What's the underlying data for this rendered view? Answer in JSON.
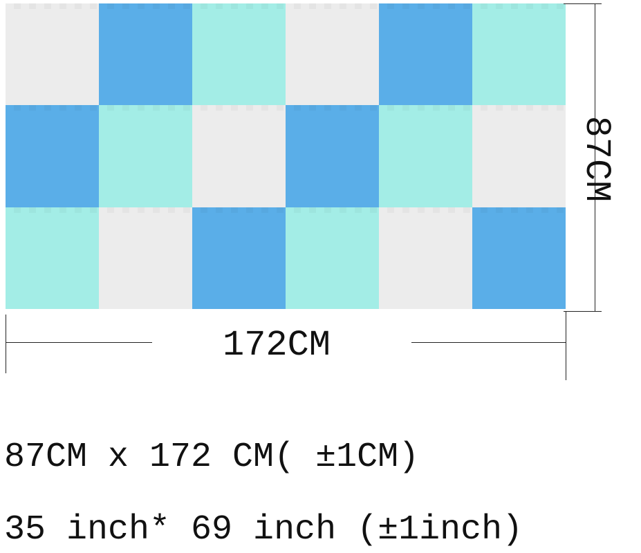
{
  "colors": {
    "white": "#ececec",
    "blue": "#5aaee8",
    "mint": "#a3ede6"
  },
  "mat": {
    "rows": [
      [
        "white",
        "blue",
        "mint",
        "white",
        "blue",
        "mint"
      ],
      [
        "blue",
        "mint",
        "white",
        "blue",
        "mint",
        "white"
      ],
      [
        "mint",
        "white",
        "blue",
        "mint",
        "white",
        "blue"
      ]
    ]
  },
  "dimensions": {
    "height_label": "87CM",
    "width_label": "172CM"
  },
  "specs": {
    "metric": "87CM x 172 CM( ±1CM)",
    "imperial": "35 inch* 69 inch (±1inch)"
  }
}
